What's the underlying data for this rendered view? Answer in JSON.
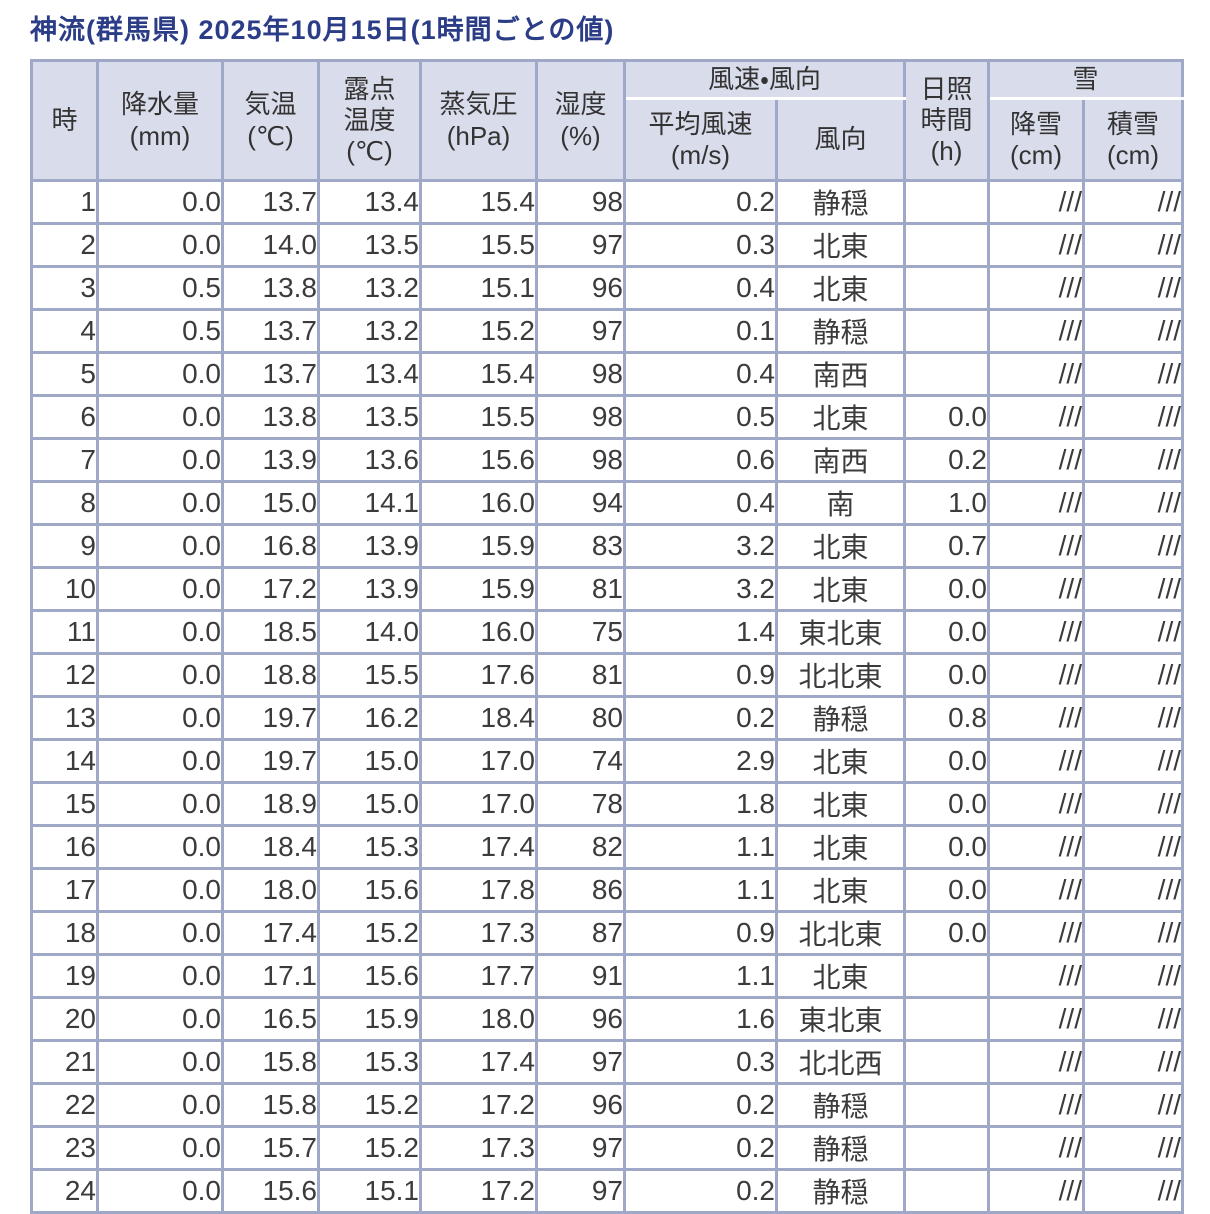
{
  "title": "神流(群馬県) 2025年10月15日(1時間ごとの値)",
  "colors": {
    "title_text": "#2b3d86",
    "grid": "#9fa8c7",
    "header_bg": "#d9dcea",
    "cell_bg": "#ffffff",
    "cell_text": "#3b3b3b"
  },
  "chart_data": {
    "type": "table",
    "title": "神流(群馬県) 2025年10月15日(1時間ごとの値)",
    "column_groups": {
      "wind": "風速・風向",
      "snow": "雪"
    },
    "headers": {
      "hour": "時",
      "precipitation": "降水量\n(mm)",
      "temperature": "気温\n(℃)",
      "dew_point": "露点\n温度\n(℃)",
      "vapor_pressure": "蒸気圧\n(hPa)",
      "humidity": "湿度\n(%)",
      "wind_speed": "平均風速\n(m/s)",
      "wind_direction": "風向",
      "sunshine": "日照\n時間\n(h)",
      "snowfall": "降雪\n(cm)",
      "snow_depth": "積雪\n(cm)"
    },
    "column_keys": [
      "hour",
      "precipitation",
      "temperature",
      "dew_point",
      "vapor_pressure",
      "humidity",
      "wind_speed",
      "wind_direction",
      "sunshine",
      "snowfall",
      "snow_depth"
    ],
    "rows": [
      [
        "1",
        "0.0",
        "13.7",
        "13.4",
        "15.4",
        "98",
        "0.2",
        "静穏",
        "",
        "///",
        "///"
      ],
      [
        "2",
        "0.0",
        "14.0",
        "13.5",
        "15.5",
        "97",
        "0.3",
        "北東",
        "",
        "///",
        "///"
      ],
      [
        "3",
        "0.5",
        "13.8",
        "13.2",
        "15.1",
        "96",
        "0.4",
        "北東",
        "",
        "///",
        "///"
      ],
      [
        "4",
        "0.5",
        "13.7",
        "13.2",
        "15.2",
        "97",
        "0.1",
        "静穏",
        "",
        "///",
        "///"
      ],
      [
        "5",
        "0.0",
        "13.7",
        "13.4",
        "15.4",
        "98",
        "0.4",
        "南西",
        "",
        "///",
        "///"
      ],
      [
        "6",
        "0.0",
        "13.8",
        "13.5",
        "15.5",
        "98",
        "0.5",
        "北東",
        "0.0",
        "///",
        "///"
      ],
      [
        "7",
        "0.0",
        "13.9",
        "13.6",
        "15.6",
        "98",
        "0.6",
        "南西",
        "0.2",
        "///",
        "///"
      ],
      [
        "8",
        "0.0",
        "15.0",
        "14.1",
        "16.0",
        "94",
        "0.4",
        "南",
        "1.0",
        "///",
        "///"
      ],
      [
        "9",
        "0.0",
        "16.8",
        "13.9",
        "15.9",
        "83",
        "3.2",
        "北東",
        "0.7",
        "///",
        "///"
      ],
      [
        "10",
        "0.0",
        "17.2",
        "13.9",
        "15.9",
        "81",
        "3.2",
        "北東",
        "0.0",
        "///",
        "///"
      ],
      [
        "11",
        "0.0",
        "18.5",
        "14.0",
        "16.0",
        "75",
        "1.4",
        "東北東",
        "0.0",
        "///",
        "///"
      ],
      [
        "12",
        "0.0",
        "18.8",
        "15.5",
        "17.6",
        "81",
        "0.9",
        "北北東",
        "0.0",
        "///",
        "///"
      ],
      [
        "13",
        "0.0",
        "19.7",
        "16.2",
        "18.4",
        "80",
        "0.2",
        "静穏",
        "0.8",
        "///",
        "///"
      ],
      [
        "14",
        "0.0",
        "19.7",
        "15.0",
        "17.0",
        "74",
        "2.9",
        "北東",
        "0.0",
        "///",
        "///"
      ],
      [
        "15",
        "0.0",
        "18.9",
        "15.0",
        "17.0",
        "78",
        "1.8",
        "北東",
        "0.0",
        "///",
        "///"
      ],
      [
        "16",
        "0.0",
        "18.4",
        "15.3",
        "17.4",
        "82",
        "1.1",
        "北東",
        "0.0",
        "///",
        "///"
      ],
      [
        "17",
        "0.0",
        "18.0",
        "15.6",
        "17.8",
        "86",
        "1.1",
        "北東",
        "0.0",
        "///",
        "///"
      ],
      [
        "18",
        "0.0",
        "17.4",
        "15.2",
        "17.3",
        "87",
        "0.9",
        "北北東",
        "0.0",
        "///",
        "///"
      ],
      [
        "19",
        "0.0",
        "17.1",
        "15.6",
        "17.7",
        "91",
        "1.1",
        "北東",
        "",
        "///",
        "///"
      ],
      [
        "20",
        "0.0",
        "16.5",
        "15.9",
        "18.0",
        "96",
        "1.6",
        "東北東",
        "",
        "///",
        "///"
      ],
      [
        "21",
        "0.0",
        "15.8",
        "15.3",
        "17.4",
        "97",
        "0.3",
        "北北西",
        "",
        "///",
        "///"
      ],
      [
        "22",
        "0.0",
        "15.8",
        "15.2",
        "17.2",
        "96",
        "0.2",
        "静穏",
        "",
        "///",
        "///"
      ],
      [
        "23",
        "0.0",
        "15.7",
        "15.2",
        "17.3",
        "97",
        "0.2",
        "静穏",
        "",
        "///",
        "///"
      ],
      [
        "24",
        "0.0",
        "15.6",
        "15.1",
        "17.2",
        "97",
        "0.2",
        "静穏",
        "",
        "///",
        "///"
      ]
    ]
  }
}
